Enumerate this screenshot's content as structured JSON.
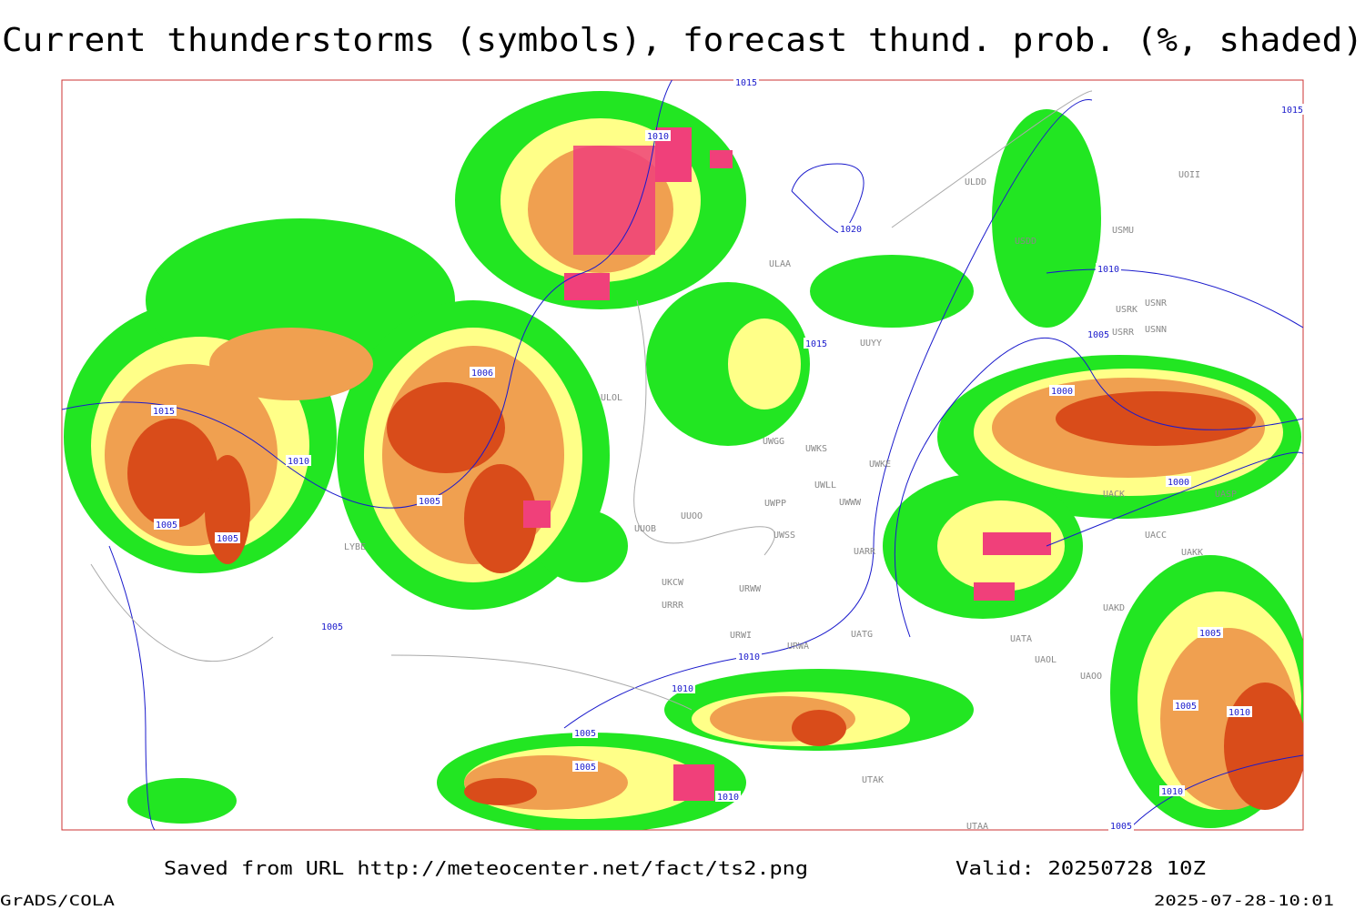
{
  "header": {
    "title": "Current thunderstorms (symbols), forecast thund. prob. (%, shaded)"
  },
  "stations": [
    "ULAA",
    "ULDD",
    "USDD",
    "UOII",
    "USMU",
    "USRK",
    "USNR",
    "USRR",
    "USNN",
    "UUYY",
    "ULOL",
    "UWGG",
    "UWKS",
    "UWKE",
    "UWLL",
    "UWWW",
    "UWPP",
    "UUOO",
    "UUOB",
    "UWSS",
    "UARR",
    "UKCW",
    "URWW",
    "URRR",
    "URWI",
    "URWA",
    "UATG",
    "UATA",
    "UAOL",
    "UAOO",
    "UAKD",
    "UACC",
    "UAKK",
    "UASP",
    "UACK",
    "UTAK",
    "UTAA",
    "LYBE"
  ],
  "isobars": [
    "1015",
    "1010",
    "1020",
    "1015",
    "1010",
    "1005",
    "1000",
    "1000",
    "1006",
    "1015",
    "1010",
    "1005",
    "1005",
    "1005",
    "1005",
    "1010",
    "1010",
    "1005",
    "1005",
    "1010",
    "1005",
    "1005",
    "1010",
    "1010",
    "1005",
    "1015"
  ],
  "footer": {
    "source": "Saved from URL http://meteocenter.net/fact/ts2.png",
    "valid": "Valid: 20250728 10Z",
    "software": "GrADS/COLA",
    "timestamp": "2025-07-28-10:01"
  }
}
